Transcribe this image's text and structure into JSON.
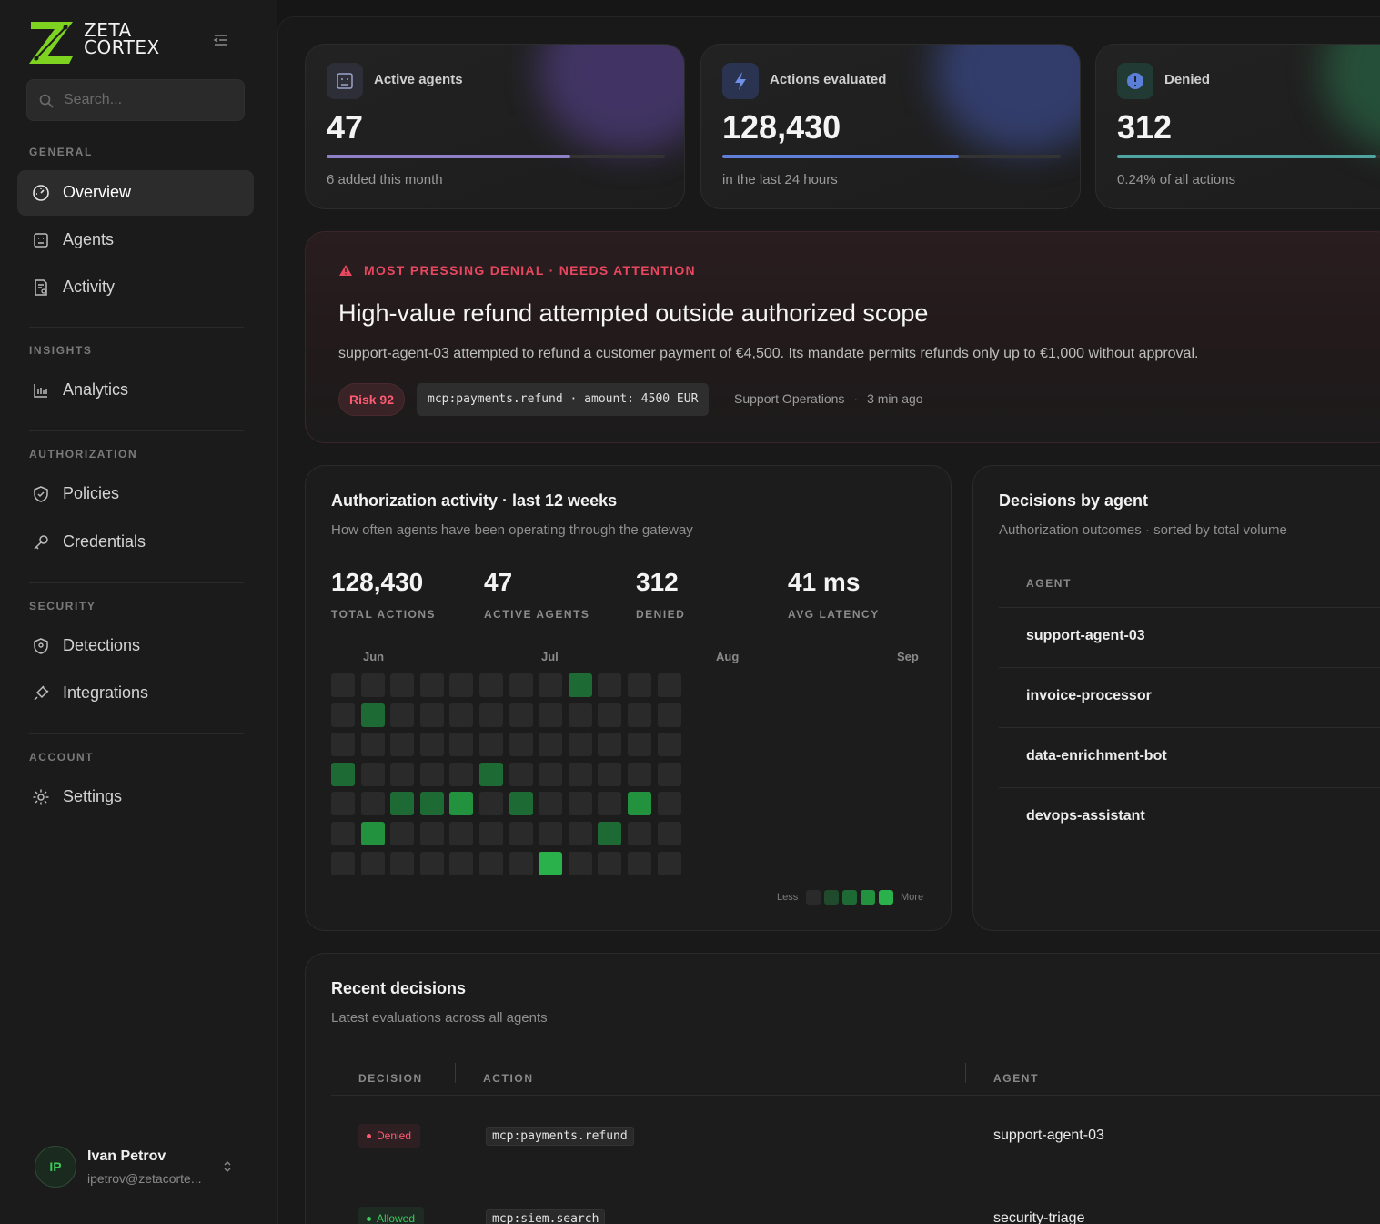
{
  "brand": {
    "line1": "ZETA",
    "line2": "CORTEX"
  },
  "search": {
    "placeholder": "Search..."
  },
  "nav": {
    "general": "GENERAL",
    "insights": "INSIGHTS",
    "authorization": "AUTHORIZATION",
    "security": "SECURITY",
    "account": "ACCOUNT",
    "overview": "Overview",
    "agents": "Agents",
    "activity": "Activity",
    "analytics": "Analytics",
    "policies": "Policies",
    "credentials": "Credentials",
    "detections": "Detections",
    "integrations": "Integrations",
    "settings": "Settings"
  },
  "user": {
    "initials": "IP",
    "name": "Ivan Petrov",
    "email": "ipetrov@zetacorte..."
  },
  "stats": [
    {
      "title": "Active agents",
      "value": "47",
      "sub": "6 added this month",
      "progress": 0.72,
      "color": "#8e7fc6"
    },
    {
      "title": "Actions evaluated",
      "value": "128,430",
      "sub": "in the last 24 hours",
      "progress": 0.7,
      "color": "#5f7fd8"
    },
    {
      "title": "Denied",
      "value": "312",
      "sub": "0.24% of all actions",
      "progress": 0.95,
      "color": "#4fa3a0"
    }
  ],
  "alert": {
    "kicker": "MOST PRESSING DENIAL · NEEDS ATTENTION",
    "title": "High-value refund attempted outside authorized scope",
    "description": "support-agent-03 attempted to refund a customer payment of €4,500. Its mandate permits refunds only up to €1,000 without approval.",
    "risk": "Risk 92",
    "action": "mcp:payments.refund · amount: 4500 EUR",
    "team": "Support Operations",
    "sep": "·",
    "time": "3 min ago"
  },
  "activity": {
    "title": "Authorization activity · last 12 weeks",
    "subtitle": "How often agents have been operating through the gateway",
    "kpis": [
      {
        "value": "128,430",
        "label": "TOTAL ACTIONS"
      },
      {
        "value": "47",
        "label": "ACTIVE AGENTS"
      },
      {
        "value": "312",
        "label": "DENIED"
      },
      {
        "value": "41 ms",
        "label": "AVG LATENCY"
      }
    ],
    "months": [
      "Jun",
      "Jul",
      "Aug",
      "Sep"
    ],
    "legend_less": "Less",
    "legend_more": "More",
    "heatmap": [
      [
        0,
        0,
        0,
        0,
        0,
        0,
        0,
        0,
        2,
        0,
        0,
        0
      ],
      [
        0,
        2,
        0,
        0,
        0,
        0,
        0,
        0,
        0,
        0,
        0,
        0
      ],
      [
        0,
        0,
        0,
        0,
        0,
        0,
        0,
        0,
        0,
        0,
        0,
        0
      ],
      [
        2,
        0,
        0,
        0,
        0,
        2,
        0,
        0,
        0,
        0,
        0,
        0
      ],
      [
        0,
        0,
        2,
        2,
        3,
        0,
        2,
        0,
        0,
        0,
        3,
        0
      ],
      [
        0,
        3,
        0,
        0,
        0,
        0,
        0,
        0,
        0,
        2,
        0,
        0
      ],
      [
        0,
        0,
        0,
        0,
        0,
        0,
        0,
        4,
        0,
        0,
        0,
        0
      ]
    ],
    "levels": [
      "#2a2a2a",
      "#1f4a2b",
      "#1e6a34",
      "#22923f",
      "#2bb14c"
    ]
  },
  "decisions": {
    "title": "Decisions by agent",
    "subtitle": "Authorization outcomes · sorted by total volume",
    "header": "AGENT",
    "agents": [
      "support-agent-03",
      "invoice-processor",
      "data-enrichment-bot",
      "devops-assistant"
    ]
  },
  "recent": {
    "title": "Recent decisions",
    "subtitle": "Latest evaluations across all agents",
    "headers": {
      "decision": "DECISION",
      "action": "ACTION",
      "agent": "AGENT"
    },
    "rows": [
      {
        "decision": "Denied",
        "action": "mcp:payments.refund",
        "agent": "support-agent-03"
      },
      {
        "decision": "Allowed",
        "action": "mcp:siem.search",
        "agent": "security-triage"
      }
    ]
  }
}
